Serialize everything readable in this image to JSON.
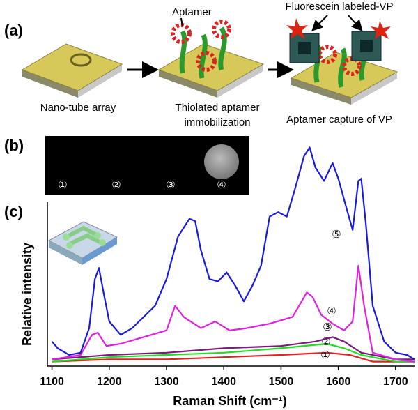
{
  "panel_a": {
    "label": "(a)",
    "aptamer": "Aptamer",
    "fluorescein": "Fluorescein labeled-VP",
    "step1": "Nano-tube array",
    "step2_line1": "Thiolated aptamer",
    "step2_line2": "immobilization",
    "step3": "Aptamer capture of VP"
  },
  "panel_b": {
    "label": "(b)",
    "spots": [
      "①",
      "②",
      "③",
      "④"
    ]
  },
  "chart_data": {
    "type": "line",
    "label": "(c)",
    "xlabel": "Raman Shift (cm⁻¹)",
    "ylabel": "Relative intensity",
    "xlim": [
      1092,
      1733
    ],
    "xticks": [
      1100,
      1200,
      1300,
      1400,
      1500,
      1600,
      1700
    ],
    "ylim": [
      0,
      100
    ],
    "series": [
      {
        "name": "①",
        "color": "#dd2222",
        "x": [
          1100,
          1200,
          1300,
          1400,
          1500,
          1580,
          1620,
          1660,
          1700,
          1733
        ],
        "values": [
          2,
          3,
          3,
          4,
          5,
          6,
          5,
          2,
          2,
          2
        ]
      },
      {
        "name": "②",
        "color": "#22dd22",
        "x": [
          1100,
          1200,
          1300,
          1400,
          1500,
          1580,
          1610,
          1640,
          1700,
          1733
        ],
        "values": [
          2,
          4,
          5,
          6,
          8,
          10,
          8,
          5,
          2,
          2
        ]
      },
      {
        "name": "③",
        "color": "#7a1a7a",
        "x": [
          1100,
          1200,
          1300,
          1400,
          1500,
          1560,
          1590,
          1610,
          1640,
          1700,
          1733
        ],
        "values": [
          3,
          5,
          6,
          8,
          9,
          11,
          13,
          11,
          6,
          3,
          3
        ]
      },
      {
        "name": "④",
        "color": "#e020e0",
        "x": [
          1100,
          1150,
          1170,
          1180,
          1195,
          1220,
          1260,
          1300,
          1315,
          1330,
          1360,
          1385,
          1410,
          1440,
          1480,
          1520,
          1545,
          1555,
          1570,
          1590,
          1610,
          1625,
          1635,
          1645,
          1660,
          1700,
          1733
        ],
        "values": [
          3,
          5,
          14,
          15,
          9,
          10,
          13,
          16,
          27,
          22,
          17,
          20,
          16,
          17,
          19,
          22,
          33,
          31,
          23,
          19,
          16,
          20,
          45,
          27,
          6,
          3,
          2
        ]
      },
      {
        "name": "⑤",
        "color": "#1a1adc",
        "x": [
          1100,
          1110,
          1130,
          1150,
          1165,
          1175,
          1182,
          1190,
          1200,
          1220,
          1240,
          1260,
          1280,
          1300,
          1320,
          1340,
          1350,
          1360,
          1375,
          1390,
          1405,
          1420,
          1435,
          1450,
          1465,
          1480,
          1495,
          1510,
          1525,
          1540,
          1550,
          1560,
          1575,
          1590,
          1600,
          1615,
          1625,
          1635,
          1640,
          1648,
          1660,
          1680,
          1700,
          1720,
          1733
        ],
        "values": [
          11,
          8,
          5,
          6,
          17,
          39,
          44,
          33,
          20,
          14,
          17,
          22,
          27,
          39,
          58,
          66,
          65,
          52,
          39,
          38,
          42,
          36,
          29,
          36,
          45,
          67,
          69,
          67,
          80,
          94,
          98,
          89,
          83,
          91,
          84,
          70,
          61,
          83,
          84,
          64,
          27,
          11,
          6,
          5,
          3
        ]
      }
    ]
  }
}
